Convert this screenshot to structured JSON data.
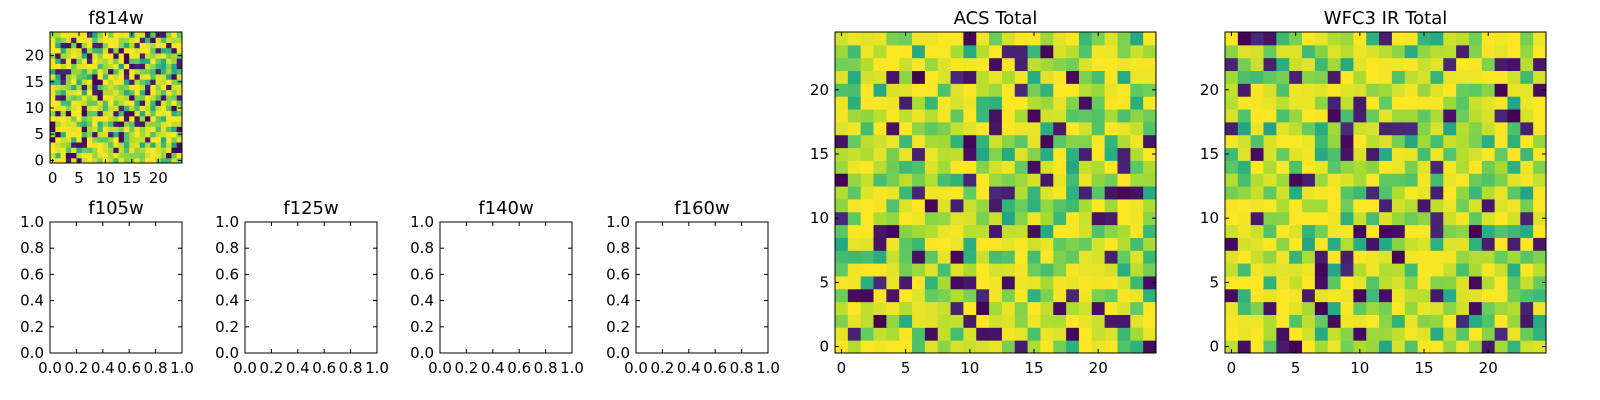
{
  "chart_data": [
    {
      "type": "heatmap",
      "title": "f814w",
      "grid": false,
      "xlim": [
        -0.5,
        24.5
      ],
      "ylim": [
        -0.5,
        24.5
      ],
      "xticks": [
        0,
        5,
        10,
        15,
        20
      ],
      "yticks": [
        0,
        5,
        10,
        15,
        20
      ],
      "xtick_labels": [
        "0",
        "5",
        "10",
        "15",
        "20"
      ],
      "ytick_labels": [
        "0",
        "5",
        "10",
        "15",
        "20"
      ],
      "colormap": "viridis",
      "values": "25x25 random noise field (values approximated)",
      "seed": 814
    },
    {
      "type": "heatmap",
      "title": "f105w",
      "empty": true,
      "xlim": [
        0.0,
        1.0
      ],
      "ylim": [
        0.0,
        1.0
      ],
      "xticks": [
        0.0,
        0.2,
        0.4,
        0.6,
        0.8,
        1.0
      ],
      "yticks": [
        0.0,
        0.2,
        0.4,
        0.6,
        0.8,
        1.0
      ],
      "xtick_labels": [
        "0.0",
        "0.2",
        "0.4",
        "0.6",
        "0.8",
        "1.0"
      ],
      "ytick_labels": [
        "0.0",
        "0.2",
        "0.4",
        "0.6",
        "0.8",
        "1.0"
      ]
    },
    {
      "type": "heatmap",
      "title": "f125w",
      "empty": true,
      "xlim": [
        0.0,
        1.0
      ],
      "ylim": [
        0.0,
        1.0
      ],
      "xticks": [
        0.0,
        0.2,
        0.4,
        0.6,
        0.8,
        1.0
      ],
      "yticks": [
        0.0,
        0.2,
        0.4,
        0.6,
        0.8,
        1.0
      ],
      "xtick_labels": [
        "0.0",
        "0.2",
        "0.4",
        "0.6",
        "0.8",
        "1.0"
      ],
      "ytick_labels": [
        "0.0",
        "0.2",
        "0.4",
        "0.6",
        "0.8",
        "1.0"
      ]
    },
    {
      "type": "heatmap",
      "title": "f140w",
      "empty": true,
      "xlim": [
        0.0,
        1.0
      ],
      "ylim": [
        0.0,
        1.0
      ],
      "xticks": [
        0.0,
        0.2,
        0.4,
        0.6,
        0.8,
        1.0
      ],
      "yticks": [
        0.0,
        0.2,
        0.4,
        0.6,
        0.8,
        1.0
      ],
      "xtick_labels": [
        "0.0",
        "0.2",
        "0.4",
        "0.6",
        "0.8",
        "1.0"
      ],
      "ytick_labels": [
        "0.0",
        "0.2",
        "0.4",
        "0.6",
        "0.8",
        "1.0"
      ]
    },
    {
      "type": "heatmap",
      "title": "f160w",
      "empty": true,
      "xlim": [
        0.0,
        1.0
      ],
      "ylim": [
        0.0,
        1.0
      ],
      "xticks": [
        0.0,
        0.2,
        0.4,
        0.6,
        0.8,
        1.0
      ],
      "yticks": [
        0.0,
        0.2,
        0.4,
        0.6,
        0.8,
        1.0
      ],
      "xtick_labels": [
        "0.0",
        "0.2",
        "0.4",
        "0.6",
        "0.8",
        "1.0"
      ],
      "ytick_labels": [
        "0.0",
        "0.2",
        "0.4",
        "0.6",
        "0.8",
        "1.0"
      ]
    },
    {
      "type": "heatmap",
      "title": "ACS Total",
      "grid": false,
      "xlim": [
        -0.5,
        24.5
      ],
      "ylim": [
        -0.5,
        24.5
      ],
      "xticks": [
        0,
        5,
        10,
        15,
        20
      ],
      "yticks": [
        0,
        5,
        10,
        15,
        20
      ],
      "xtick_labels": [
        "0",
        "5",
        "10",
        "15",
        "20"
      ],
      "ytick_labels": [
        "0",
        "5",
        "10",
        "15",
        "20"
      ],
      "colormap": "viridis",
      "values": "25x25 random noise field (values approximated)",
      "seed": 2001
    },
    {
      "type": "heatmap",
      "title": "WFC3 IR Total",
      "grid": false,
      "xlim": [
        -0.5,
        24.5
      ],
      "ylim": [
        -0.5,
        24.5
      ],
      "xticks": [
        0,
        5,
        10,
        15,
        20
      ],
      "yticks": [
        0,
        5,
        10,
        15,
        20
      ],
      "xtick_labels": [
        "0",
        "5",
        "10",
        "15",
        "20"
      ],
      "ytick_labels": [
        "0",
        "5",
        "10",
        "15",
        "20"
      ],
      "colormap": "viridis",
      "values": "25x25 random noise field (values approximated)",
      "seed": 3003
    }
  ],
  "colors": {
    "viridis_dark": "#440154",
    "viridis_mid": "#21918c",
    "viridis_green": "#5ec962",
    "viridis_yellow": "#fde725",
    "axis": "#000000"
  }
}
